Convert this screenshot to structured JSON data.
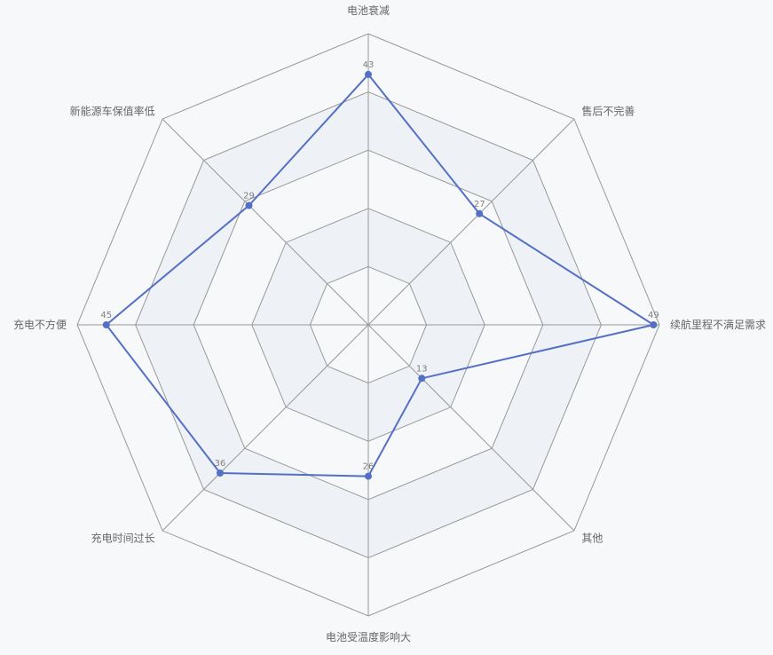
{
  "chart_data": {
    "type": "radar",
    "indicators": [
      "电池衰减",
      "售后不完善",
      "续航里程不满足需求",
      "其他",
      "电池受温度影响大",
      "充电时间过长",
      "充电不方便",
      "新能源车保值率低"
    ],
    "values": [
      43,
      27,
      49,
      13,
      26,
      36,
      45,
      29
    ],
    "max": 50,
    "levels": 5,
    "series": [
      {
        "values": [
          43,
          27,
          49,
          13,
          26,
          36,
          45,
          29
        ]
      }
    ],
    "colors": {
      "line": "#5470c6",
      "band_dark": "#eef1f6",
      "band_light": "#f7f8fa",
      "grid": "#999999"
    }
  }
}
